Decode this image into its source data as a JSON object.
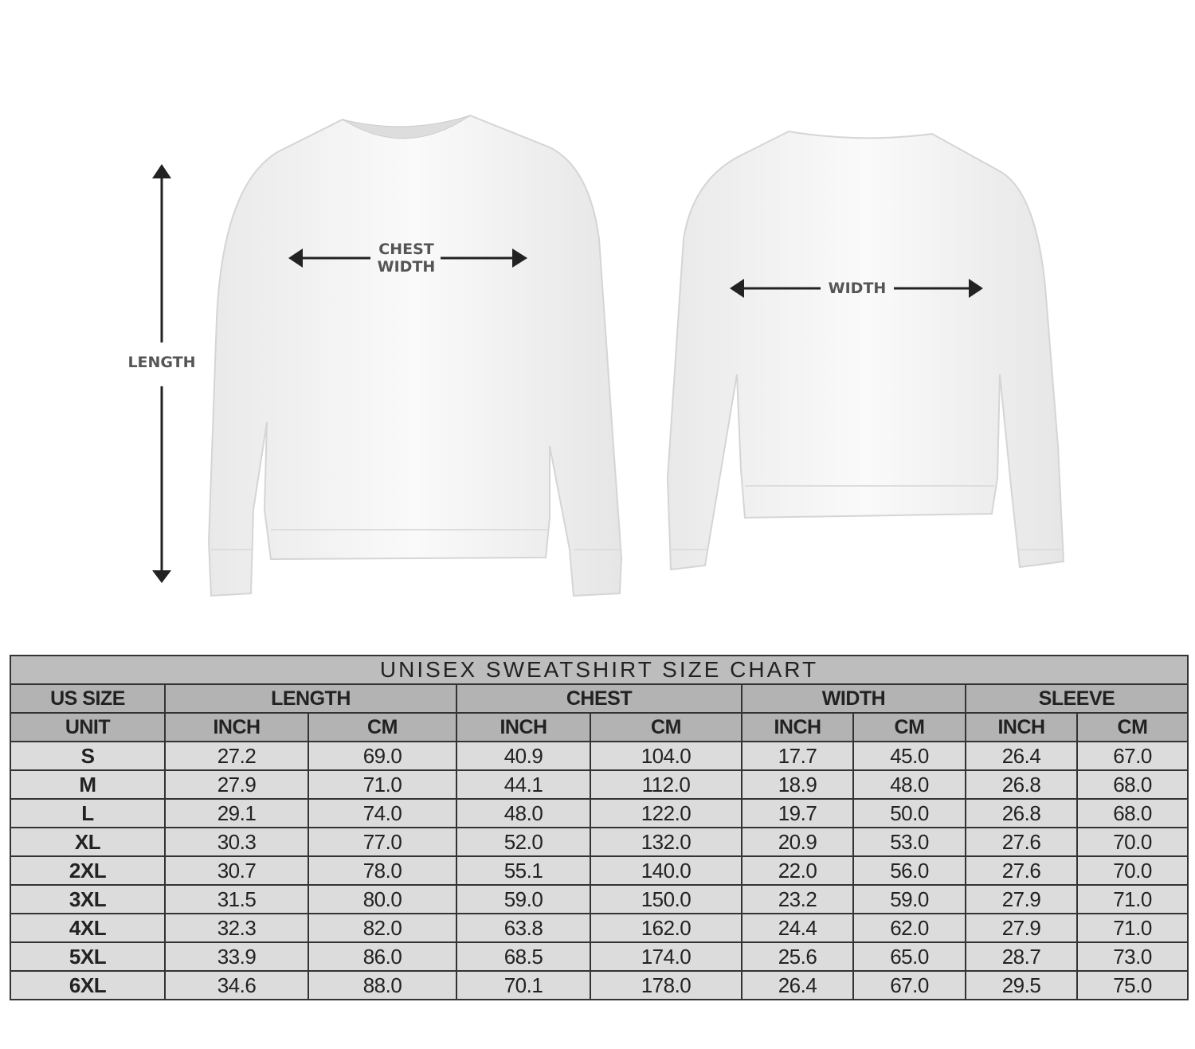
{
  "diagram": {
    "length_label": "LENGTH",
    "chest_label_line1": "CHEST",
    "chest_label_line2": "WIDTH",
    "width_label": "WIDTH"
  },
  "size_chart": {
    "title": "UNISEX SWEATSHIRT SIZE CHART",
    "group_headers": [
      "US SIZE",
      "LENGTH",
      "CHEST",
      "WIDTH",
      "SLEEVE"
    ],
    "unit_headers": [
      "UNIT",
      "INCH",
      "CM",
      "INCH",
      "CM",
      "INCH",
      "CM",
      "INCH",
      "CM"
    ],
    "rows": [
      [
        "S",
        "27.2",
        "69.0",
        "40.9",
        "104.0",
        "17.7",
        "45.0",
        "26.4",
        "67.0"
      ],
      [
        "M",
        "27.9",
        "71.0",
        "44.1",
        "112.0",
        "18.9",
        "48.0",
        "26.8",
        "68.0"
      ],
      [
        "L",
        "29.1",
        "74.0",
        "48.0",
        "122.0",
        "19.7",
        "50.0",
        "26.8",
        "68.0"
      ],
      [
        "XL",
        "30.3",
        "77.0",
        "52.0",
        "132.0",
        "20.9",
        "53.0",
        "27.6",
        "70.0"
      ],
      [
        "2XL",
        "30.7",
        "78.0",
        "55.1",
        "140.0",
        "22.0",
        "56.0",
        "27.6",
        "70.0"
      ],
      [
        "3XL",
        "31.5",
        "80.0",
        "59.0",
        "150.0",
        "23.2",
        "59.0",
        "27.9",
        "71.0"
      ],
      [
        "4XL",
        "32.3",
        "82.0",
        "63.8",
        "162.0",
        "24.4",
        "62.0",
        "27.9",
        "71.0"
      ],
      [
        "5XL",
        "33.9",
        "86.0",
        "68.5",
        "174.0",
        "25.6",
        "65.0",
        "28.7",
        "73.0"
      ],
      [
        "6XL",
        "34.6",
        "88.0",
        "70.1",
        "178.0",
        "26.4",
        "67.0",
        "29.5",
        "75.0"
      ]
    ]
  }
}
